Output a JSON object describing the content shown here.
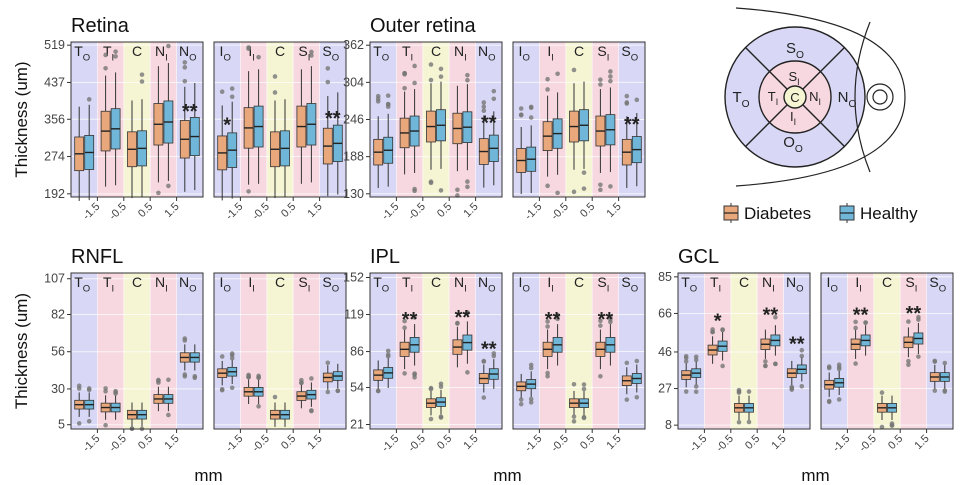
{
  "figure": {
    "ylabel": "Thickness (um)",
    "xlabel": "mm",
    "x_ticks": [
      "-1.5",
      "-0.5",
      "0.5",
      "1.5"
    ],
    "significance_marks": [
      "*",
      "**"
    ]
  },
  "legend": {
    "entries": [
      {
        "name": "Diabetes",
        "color": "#E8A87C"
      },
      {
        "name": "Healthy",
        "color": "#6FB6D8"
      }
    ]
  },
  "region_colors": {
    "outer": "#D8D8F6",
    "inner": "#F7D8E0",
    "center": "#F5F5D4"
  },
  "diagram": {
    "labels": [
      "S",
      "O",
      "S",
      "I",
      "T",
      "O",
      "T",
      "I",
      "C",
      "N",
      "I",
      "N",
      "O",
      "I",
      "I",
      "O"
    ]
  },
  "chart_data": [
    {
      "type": "box",
      "title": "Retina",
      "ylabel": "Thickness (um)",
      "yticks": [
        192,
        274,
        356,
        437,
        519
      ],
      "ylim": [
        185,
        526
      ],
      "panels": [
        {
          "zones": [
            "T",
            "O",
            "T",
            "I",
            "C",
            "",
            "N",
            "I",
            "N",
            "O"
          ],
          "diabetes_medians": [
            280,
            330,
            290,
            345,
            312
          ],
          "healthy_medians": [
            283,
            335,
            292,
            350,
            318
          ],
          "marks": [
            "",
            "",
            "",
            "",
            "**"
          ]
        },
        {
          "zones": [
            "I",
            "O",
            "I",
            "I",
            "C",
            "",
            "S",
            "I",
            "S",
            "O"
          ],
          "diabetes_medians": [
            282,
            337,
            290,
            340,
            297
          ],
          "healthy_medians": [
            288,
            340,
            292,
            345,
            303
          ],
          "marks": [
            "*",
            "",
            "",
            "",
            "**"
          ]
        }
      ]
    },
    {
      "type": "box",
      "title": "Outer retina",
      "yticks": [
        130,
        188,
        246,
        304,
        362
      ],
      "ylim": [
        125,
        367
      ],
      "panels": [
        {
          "zones": [
            "T",
            "O",
            "T",
            "I",
            "C",
            "",
            "N",
            "I",
            "N",
            "O"
          ],
          "diabetes_medians": [
            195,
            225,
            235,
            232,
            196
          ],
          "healthy_medians": [
            198,
            228,
            237,
            234,
            201
          ],
          "marks": [
            "",
            "",
            "",
            "",
            "**"
          ]
        },
        {
          "zones": [
            "I",
            "O",
            "I",
            "I",
            "C",
            "",
            "S",
            "I",
            "S",
            "O"
          ],
          "diabetes_medians": [
            182,
            220,
            235,
            228,
            195
          ],
          "healthy_medians": [
            184,
            224,
            237,
            230,
            199
          ],
          "marks": [
            "",
            "",
            "",
            "",
            "**"
          ]
        }
      ]
    },
    {
      "type": "box",
      "title": "RNFL",
      "ylabel": "Thickness (um)",
      "yticks": [
        5,
        30,
        56,
        82,
        107
      ],
      "ylim": [
        2,
        111
      ],
      "panels": [
        {
          "zones": [
            "T",
            "O",
            "T",
            "I",
            "C",
            "",
            "N",
            "I",
            "N",
            "O"
          ],
          "diabetes_medians": [
            19,
            17,
            12,
            23,
            52
          ],
          "healthy_medians": [
            19,
            17,
            12,
            23,
            52
          ],
          "marks": [
            "",
            "",
            "",
            "",
            ""
          ]
        },
        {
          "zones": [
            "I",
            "O",
            "I",
            "I",
            "C",
            "",
            "S",
            "I",
            "S",
            "O"
          ],
          "diabetes_medians": [
            41,
            28,
            12,
            25,
            38
          ],
          "healthy_medians": [
            42,
            28,
            12,
            26,
            39
          ],
          "marks": [
            "",
            "",
            "",
            "",
            ""
          ]
        }
      ]
    },
    {
      "type": "box",
      "title": "IPL",
      "yticks": [
        21,
        54,
        86,
        119,
        152
      ],
      "ylim": [
        17,
        156
      ],
      "panels": [
        {
          "zones": [
            "T",
            "O",
            "T",
            "I",
            "C",
            "",
            "N",
            "I",
            "N",
            "O"
          ],
          "diabetes_medians": [
            65,
            88,
            40,
            90,
            62
          ],
          "healthy_medians": [
            67,
            92,
            41,
            94,
            66
          ],
          "marks": [
            "",
            "**",
            "",
            "**",
            "**"
          ]
        },
        {
          "zones": [
            "I",
            "O",
            "I",
            "I",
            "C",
            "",
            "S",
            "I",
            "S",
            "O"
          ],
          "diabetes_medians": [
            55,
            88,
            40,
            88,
            60
          ],
          "healthy_medians": [
            57,
            92,
            40,
            92,
            62
          ],
          "marks": [
            "",
            "**",
            "",
            "**",
            ""
          ]
        }
      ]
    },
    {
      "type": "box",
      "title": "GCL",
      "yticks": [
        8,
        27,
        46,
        66,
        85
      ],
      "ylim": [
        6,
        87
      ],
      "panels": [
        {
          "zones": [
            "T",
            "O",
            "T",
            "I",
            "C",
            "",
            "N",
            "I",
            "N",
            "O"
          ],
          "diabetes_medians": [
            34,
            47,
            17,
            50,
            35
          ],
          "healthy_medians": [
            35,
            49,
            17,
            52,
            37
          ],
          "marks": [
            "",
            "*",
            "",
            "**",
            "**"
          ]
        },
        {
          "zones": [
            "I",
            "O",
            "I",
            "I",
            "C",
            "",
            "S",
            "I",
            "S",
            "O"
          ],
          "diabetes_medians": [
            29,
            50,
            17,
            51,
            33
          ],
          "healthy_medians": [
            30,
            52,
            17,
            53,
            33
          ],
          "marks": [
            "",
            "**",
            "",
            "**",
            ""
          ]
        }
      ]
    }
  ]
}
